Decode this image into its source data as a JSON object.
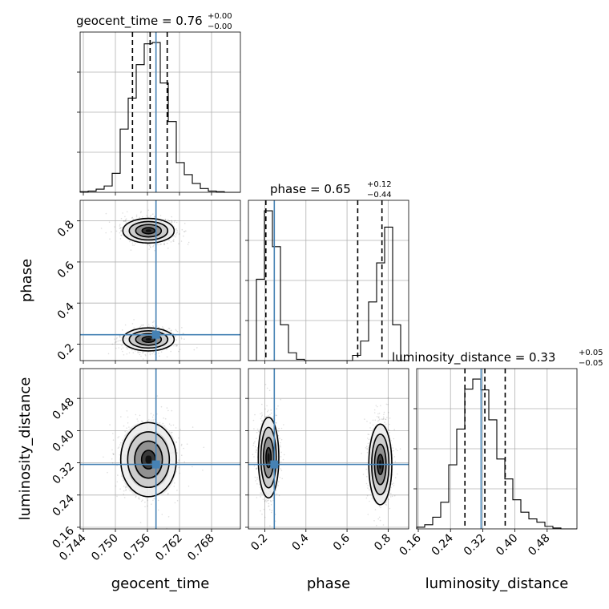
{
  "chart_data": {
    "type": "corner",
    "parameters": [
      "geocent_time",
      "phase",
      "luminosity_distance"
    ],
    "truths": {
      "geocent_time": 0.7576,
      "phase": 0.246,
      "luminosity_distance": 0.316
    },
    "titles": [
      {
        "param": "geocent_time",
        "text": "geocent_time = 0.76",
        "sup": "+0.00",
        "sub": "−0.00"
      },
      {
        "param": "phase",
        "text": "phase = 0.65",
        "sup": "+0.12",
        "sub": "−0.44"
      },
      {
        "param": "luminosity_distance",
        "text": "luminosity_distance = 0.33",
        "sup": "+0.05",
        "sub": "−0.05"
      }
    ],
    "axes": {
      "geocent_time": {
        "range": [
          0.7434,
          0.7734
        ],
        "ticks": [
          0.744,
          0.75,
          0.756,
          0.762,
          0.768
        ],
        "tick_labels": [
          "0.744",
          "0.750",
          "0.756",
          "0.762",
          "0.768"
        ],
        "label": "geocent_time"
      },
      "phase": {
        "range": [
          0.12,
          0.9
        ],
        "ticks": [
          0.2,
          0.4,
          0.6,
          0.8
        ],
        "tick_labels": [
          "0.2",
          "0.4",
          "0.6",
          "0.8"
        ],
        "label": "phase"
      },
      "luminosity_distance": {
        "range": [
          0.156,
          0.554
        ],
        "ticks": [
          0.16,
          0.24,
          0.32,
          0.4,
          0.48
        ],
        "tick_labels": [
          "0.16",
          "0.24",
          "0.32",
          "0.40",
          "0.48"
        ],
        "label": "luminosity_distance"
      }
    },
    "histograms": {
      "geocent_time": {
        "bin_edges": [
          0.7434,
          0.7449,
          0.7464,
          0.7479,
          0.7494,
          0.7509,
          0.7524,
          0.7539,
          0.7554,
          0.7569,
          0.7584,
          0.7599,
          0.7614,
          0.7629,
          0.7644,
          0.7659,
          0.7674,
          0.7689,
          0.7704,
          0.7719,
          0.7734
        ],
        "counts": [
          1,
          2,
          5,
          10,
          30,
          100,
          149,
          202,
          235,
          237,
          173,
          112,
          47,
          28,
          14,
          6,
          2,
          1,
          0,
          0
        ],
        "quantiles": [
          0.7532,
          0.7565,
          0.7597
        ]
      },
      "phase": {
        "bin_edges": [
          0.12,
          0.159,
          0.198,
          0.237,
          0.276,
          0.315,
          0.354,
          0.393,
          0.432,
          0.471,
          0.51,
          0.549,
          0.588,
          0.627,
          0.666,
          0.705,
          0.744,
          0.783,
          0.822,
          0.861,
          0.9
        ],
        "counts": [
          0,
          125,
          230,
          175,
          55,
          12,
          2,
          0,
          0,
          0,
          0,
          0,
          0,
          8,
          30,
          90,
          150,
          205,
          55,
          0
        ],
        "quantiles": [
          0.205,
          0.652,
          0.77
        ]
      },
      "luminosity_distance": {
        "bin_edges": [
          0.156,
          0.1759,
          0.1958,
          0.2157,
          0.2356,
          0.2555,
          0.2754,
          0.2953,
          0.3152,
          0.3351,
          0.355,
          0.3749,
          0.3948,
          0.4147,
          0.4346,
          0.4545,
          0.4744,
          0.4943,
          0.5142,
          0.5341,
          0.554
        ],
        "counts": [
          2,
          5,
          14,
          32,
          77,
          120,
          168,
          180,
          167,
          131,
          84,
          60,
          35,
          20,
          12,
          8,
          3,
          1,
          0,
          0
        ],
        "quantiles": [
          0.2758,
          0.3253,
          0.3758
        ]
      }
    },
    "density_2d": {
      "phase_vs_geocent_time": {
        "modes": [
          {
            "x": 0.7562,
            "y": 0.752,
            "sx": 0.0024,
            "sy": 0.03
          },
          {
            "x": 0.7562,
            "y": 0.223,
            "sx": 0.0024,
            "sy": 0.028
          }
        ]
      },
      "luminosity_distance_vs_geocent_time": {
        "modes": [
          {
            "x": 0.7562,
            "y": 0.328,
            "sx": 0.0026,
            "sy": 0.046
          }
        ]
      },
      "luminosity_distance_vs_phase": {
        "modes": [
          {
            "x": 0.218,
            "y": 0.333,
            "sx": 0.025,
            "sy": 0.05
          },
          {
            "x": 0.762,
            "y": 0.316,
            "sx": 0.028,
            "sy": 0.05
          }
        ]
      }
    },
    "grid": true
  }
}
